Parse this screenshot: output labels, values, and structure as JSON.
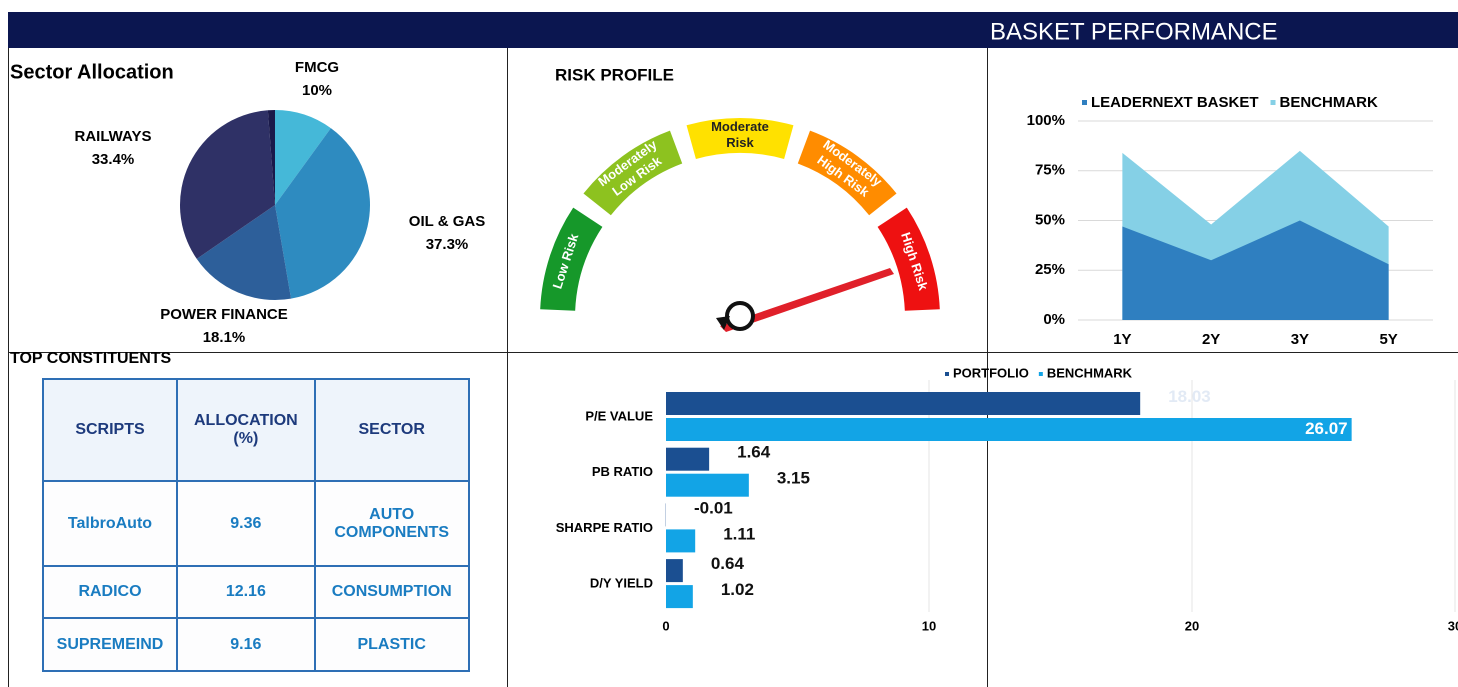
{
  "header": {
    "title": "BASKET PERFORMANCE"
  },
  "chart_data": [
    {
      "type": "pie",
      "title": "Sector Allocation",
      "categories": [
        "FMCG",
        "OIL & GAS",
        "POWER FINANCE",
        "RAILWAYS",
        null
      ],
      "values": [
        10,
        37.3,
        18.1,
        33.4,
        1.2
      ],
      "value_labels": [
        "10%",
        "37.3%",
        "18.1%",
        "33.4%",
        null
      ],
      "colors": [
        "#45b8d8",
        "#2e8bc0",
        "#2d5f9a",
        "#2f3166",
        "#1a1a4a"
      ]
    },
    {
      "type": "gauge",
      "title": "RISK PROFILE",
      "segments": [
        [
          "Low Risk"
        ],
        [
          "Moderately",
          "Low Risk"
        ],
        [
          "Moderate",
          "Risk"
        ],
        [
          "Moderately",
          "High Risk"
        ],
        [
          "High Risk"
        ]
      ],
      "colors": [
        "#16982a",
        "#8dc21f",
        "#ffe100",
        "#ff8c00",
        "#ee1111"
      ]
    },
    {
      "type": "area",
      "categories": [
        "1Y",
        "2Y",
        "3Y",
        "5Y"
      ],
      "series": [
        {
          "name": "LEADERNEXT BASKET",
          "color": "#2f7fc0",
          "values": [
            47,
            30,
            50,
            28
          ]
        },
        {
          "name": "BENCHMARK",
          "color": "#85d0e6",
          "values": [
            84,
            48,
            85,
            47
          ]
        }
      ],
      "ylim": [
        0,
        100
      ],
      "yticks": [
        {
          "value": 0,
          "label": "0%"
        },
        {
          "value": 25,
          "label": "25%"
        },
        {
          "value": 50,
          "label": "50%"
        },
        {
          "value": 75,
          "label": "75%"
        },
        {
          "value": 100,
          "label": "100%"
        }
      ],
      "grid": true
    },
    {
      "type": "hbar",
      "categories": [
        "P/E VALUE",
        "PB RATIO",
        "SHARPE RATIO",
        "D/Y YIELD"
      ],
      "series": [
        {
          "name": "PORTFOLIO",
          "color": "#1b4f91",
          "values": [
            18.03,
            1.64,
            -0.01,
            0.64
          ]
        },
        {
          "name": "BENCHMARK",
          "color": "#12a4e6",
          "values": [
            26.07,
            3.15,
            1.11,
            1.02
          ]
        }
      ],
      "xlim": [
        0,
        30
      ],
      "xticks": [
        0,
        10,
        20,
        30
      ],
      "grid": true
    }
  ],
  "table": {
    "title": "TOP CONSTITUENTS",
    "header": [
      "SCRIPTS",
      "ALLOCATION (%)",
      "SECTOR"
    ],
    "rows": [
      [
        "TalbroAuto",
        "9.36",
        "AUTO COMPONENTS"
      ],
      [
        "RADICO",
        "12.16",
        "CONSUMPTION"
      ],
      [
        "SUPREMEIND",
        "9.16",
        "PLASTIC"
      ]
    ]
  }
}
